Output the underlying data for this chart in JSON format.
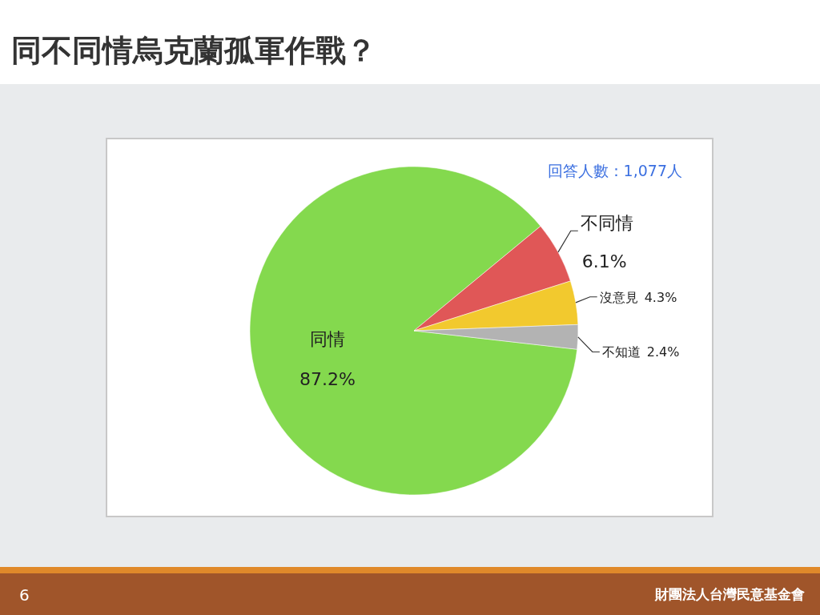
{
  "chart_data": {
    "type": "pie",
    "title": "同不同情烏克蘭孤軍作戰？",
    "categories": [
      "同情",
      "不同情",
      "沒意見",
      "不知道"
    ],
    "values": [
      87.2,
      6.1,
      4.3,
      2.4
    ],
    "value_labels": [
      "87.2%",
      "6.1%",
      "4.3%",
      "2.4%"
    ],
    "colors": [
      "#84d94e",
      "#e05757",
      "#f2c92e",
      "#b3b3b3"
    ],
    "annotations": [
      "回答人數：1,077人",
      "財團法人台灣民意基金會",
      "6"
    ]
  }
}
